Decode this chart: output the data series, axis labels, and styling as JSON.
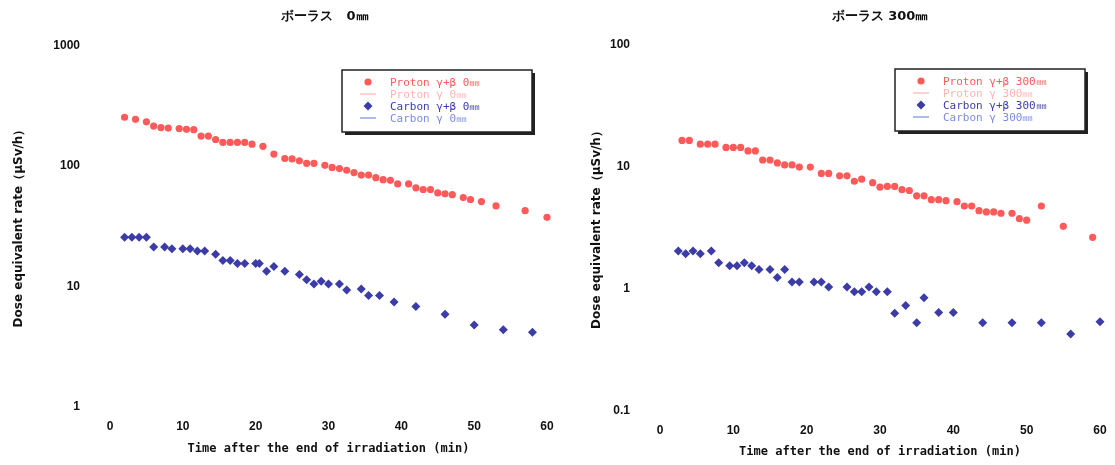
{
  "chart_data": [
    {
      "type": "scatter",
      "title": "ボーラス　0㎜",
      "xlabel": "Time after the end of irradiation (min)",
      "ylabel": "Dose equivalent rate（μSv/h）",
      "log": "y",
      "xlim": [
        0,
        60
      ],
      "ylim": [
        1,
        1000
      ],
      "xticks": [
        0,
        10,
        20,
        30,
        40,
        50,
        60
      ],
      "yticks": [
        1,
        10,
        100,
        1000
      ],
      "grid": false,
      "legend": "top right",
      "series": [
        {
          "name": "Proton γ+β 0㎜",
          "color": "#ff5a5a",
          "marker": "circle",
          "x": [
            2,
            3.5,
            5,
            6,
            7,
            8,
            9.5,
            10.5,
            11.5,
            12.5,
            13.5,
            14.5,
            15.5,
            16.5,
            17.5,
            18.5,
            19.5,
            21,
            22.5,
            24,
            25,
            26,
            27,
            28,
            29.5,
            30.5,
            31.5,
            32.5,
            33.5,
            34.5,
            35.5,
            36.5,
            37.5,
            38.5,
            39.5,
            41,
            42,
            43,
            44,
            45,
            46,
            47,
            48.5,
            49.5,
            51,
            53,
            57,
            60
          ],
          "values": [
            251,
            241,
            230,
            212,
            206,
            204,
            202,
            199,
            198,
            175,
            175,
            164,
            155,
            155,
            155,
            155,
            150,
            144,
            124,
            114,
            113,
            109,
            104,
            104,
            100,
            96,
            94,
            91,
            87,
            83,
            83,
            79,
            76,
            75,
            70,
            70,
            65,
            63,
            63,
            59,
            58,
            57,
            54,
            52,
            50,
            46,
            42,
            37
          ]
        },
        {
          "name": "Proton γ 0㎜",
          "color": "#ffb4b4",
          "type": "line",
          "marker": "none"
        },
        {
          "name": "Carbon γ+β 0㎜",
          "color": "#3c3ca8",
          "marker": "diamond",
          "x": [
            2,
            3,
            4,
            5,
            6,
            7.5,
            8.5,
            10,
            11,
            12,
            13,
            14.5,
            15.5,
            16.5,
            17.5,
            18.5,
            20,
            20.5,
            21.5,
            22.5,
            24,
            26,
            27,
            28,
            29,
            30,
            31.5,
            32.5,
            34.5,
            35.5,
            37,
            39,
            42,
            46,
            50,
            54,
            58
          ],
          "values": [
            25.2,
            25.2,
            25.2,
            25.2,
            21,
            21,
            20.3,
            20.3,
            20.3,
            19.4,
            19.4,
            18.2,
            16.2,
            16.2,
            15.3,
            15.3,
            15.3,
            15.3,
            13.2,
            14.4,
            13.2,
            12.4,
            11.2,
            10.3,
            10.9,
            10.3,
            10.3,
            9.2,
            9.4,
            8.3,
            8.3,
            7.3,
            6.7,
            5.8,
            4.7,
            4.3,
            4.1
          ]
        },
        {
          "name": "Carbon γ 0㎜",
          "color": "#7a8ce0",
          "type": "line",
          "marker": "none"
        }
      ]
    },
    {
      "type": "scatter",
      "title": "ボーラス 300㎜",
      "xlabel": "Time after the end of irradiation (min)",
      "ylabel": "Dose equivalent rate（μSv/h）",
      "log": "y",
      "xlim": [
        0,
        60
      ],
      "ylim": [
        0.1,
        100
      ],
      "xticks": [
        0,
        10,
        20,
        30,
        40,
        50,
        60
      ],
      "yticks": [
        0.1,
        1,
        10,
        100
      ],
      "grid": false,
      "legend": "top right",
      "series": [
        {
          "name": "Proton γ+β 300㎜",
          "color": "#ff5a5a",
          "marker": "circle",
          "x": [
            3,
            4,
            5.5,
            6.5,
            7.5,
            9,
            10,
            11,
            12,
            13,
            14,
            15,
            16,
            17,
            18,
            19,
            20.5,
            22,
            23,
            24.5,
            25.5,
            26.5,
            27.5,
            29,
            30,
            31,
            32,
            33,
            34,
            35,
            36,
            37,
            38,
            39,
            40.5,
            41.5,
            42.5,
            43.5,
            44.5,
            45.5,
            46.5,
            48,
            49,
            50,
            52,
            55,
            59
          ],
          "values": [
            16.2,
            16.2,
            15.1,
            15.1,
            15.1,
            14.2,
            14.2,
            14.2,
            13.3,
            13.3,
            11.2,
            11.2,
            10.6,
            10.2,
            10.2,
            9.8,
            9.8,
            8.7,
            8.7,
            8.3,
            8.3,
            7.5,
            7.8,
            7.3,
            6.7,
            6.8,
            6.8,
            6.4,
            6.3,
            5.7,
            5.7,
            5.3,
            5.3,
            5.2,
            5.1,
            4.7,
            4.7,
            4.3,
            4.2,
            4.2,
            4.1,
            4.1,
            3.7,
            3.6,
            4.7,
            3.2,
            2.6
          ]
        },
        {
          "name": "Proton γ 300㎜",
          "color": "#ffb4b4",
          "type": "line",
          "marker": "none"
        },
        {
          "name": "Carbon γ+β 300㎜",
          "color": "#3c3ca8",
          "marker": "diamond",
          "x": [
            2.5,
            3.5,
            4.5,
            5.5,
            7,
            8,
            9.5,
            10.5,
            11.5,
            12.5,
            13.5,
            15,
            16,
            17,
            18,
            19,
            21,
            22,
            23,
            25.5,
            26.5,
            27.5,
            28.5,
            29.5,
            31,
            32,
            33.5,
            35,
            36,
            38,
            40,
            44,
            48,
            52,
            56,
            60
          ],
          "values": [
            2.01,
            1.91,
            2.01,
            1.91,
            2.01,
            1.61,
            1.52,
            1.52,
            1.61,
            1.52,
            1.42,
            1.42,
            1.22,
            1.42,
            1.12,
            1.12,
            1.12,
            1.12,
            1.02,
            1.02,
            0.93,
            0.93,
            1.02,
            0.93,
            0.93,
            0.62,
            0.72,
            0.52,
            0.83,
            0.63,
            0.63,
            0.52,
            0.52,
            0.52,
            0.42,
            0.53
          ]
        },
        {
          "name": "Carbon γ 300㎜",
          "color": "#7a8ce0",
          "type": "line",
          "marker": "none"
        }
      ]
    }
  ]
}
